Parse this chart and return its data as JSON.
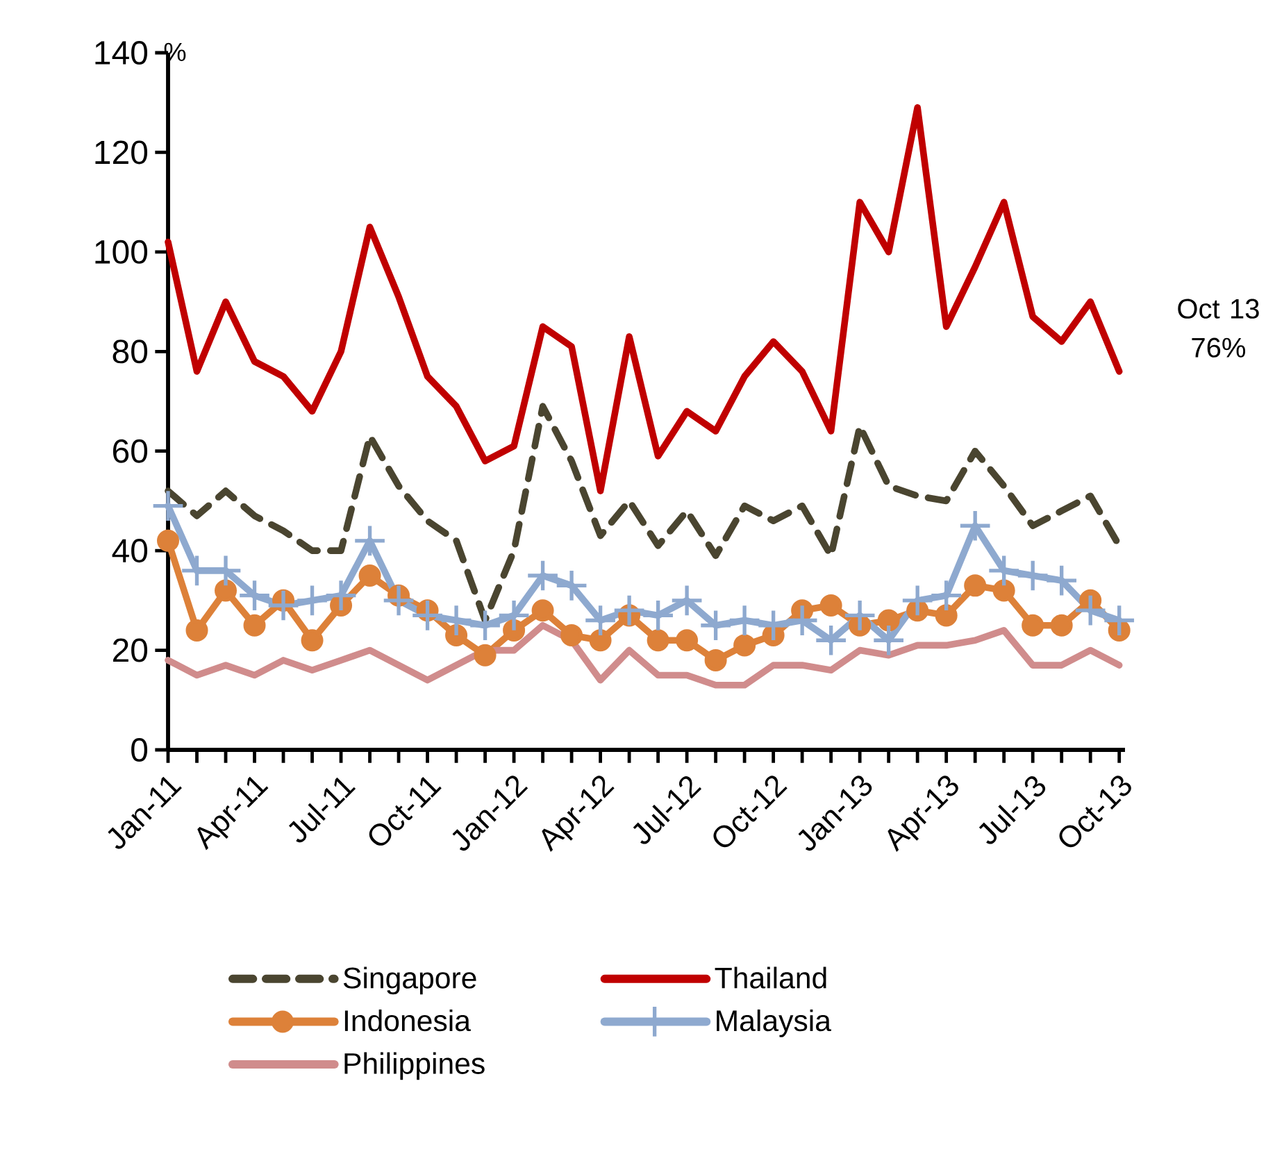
{
  "chart_data": {
    "type": "line",
    "ylabel": "%",
    "categories": [
      "Jan-11",
      null,
      null,
      "Apr-11",
      null,
      null,
      "Jul-11",
      null,
      null,
      "Oct-11",
      null,
      null,
      "Jan-12",
      null,
      null,
      "Apr-12",
      null,
      null,
      "Jul-12",
      null,
      null,
      "Oct-12",
      null,
      null,
      "Jan-13",
      null,
      null,
      "Apr-13",
      null,
      null,
      "Jul-13",
      null,
      null,
      "Oct-13"
    ],
    "ylim": [
      0,
      140
    ],
    "yticks": [
      0,
      20,
      40,
      60,
      80,
      100,
      120,
      140
    ],
    "legend": "bottom",
    "grid": false,
    "series": [
      {
        "name": "Singapore",
        "color": "#4a4530",
        "line_style": "dashed",
        "marker": "none",
        "values": [
          52,
          47,
          52,
          47,
          44,
          40,
          40,
          63,
          53,
          46,
          42,
          26,
          40,
          69,
          58,
          43,
          50,
          41,
          48,
          39,
          49,
          46,
          49,
          39,
          65,
          53,
          51,
          50,
          60,
          53,
          45,
          48,
          51,
          41
        ]
      },
      {
        "name": "Thailand",
        "color": "#c00000",
        "line_style": "solid",
        "marker": "none",
        "values": [
          102,
          76,
          90,
          78,
          75,
          68,
          80,
          105,
          91,
          75,
          69,
          58,
          61,
          85,
          81,
          52,
          83,
          59,
          68,
          64,
          75,
          82,
          76,
          64,
          110,
          100,
          129,
          85,
          97,
          110,
          87,
          82,
          90,
          76
        ]
      },
      {
        "name": "Indonesia",
        "color": "#dd8139",
        "line_style": "solid",
        "marker": "circle",
        "values": [
          42,
          24,
          32,
          25,
          30,
          22,
          29,
          35,
          31,
          28,
          23,
          19,
          24,
          28,
          23,
          22,
          27,
          22,
          22,
          18,
          21,
          23,
          28,
          29,
          25,
          26,
          28,
          27,
          33,
          32,
          25,
          25,
          30,
          24
        ]
      },
      {
        "name": "Malaysia",
        "color": "#8ea9cf",
        "line_style": "solid",
        "marker": "cross",
        "values": [
          49,
          36,
          36,
          31,
          29,
          30,
          31,
          42,
          30,
          27,
          26,
          25,
          27,
          35,
          33,
          26,
          28,
          27,
          30,
          25,
          26,
          25,
          26,
          22,
          27,
          22,
          30,
          31,
          45,
          36,
          35,
          34,
          28,
          26
        ]
      },
      {
        "name": "Philippines",
        "color": "#d08c8c",
        "line_style": "solid",
        "marker": "none",
        "values": [
          18,
          15,
          17,
          15,
          18,
          16,
          18,
          20,
          17,
          14,
          17,
          20,
          20,
          25,
          22,
          14,
          20,
          15,
          15,
          13,
          13,
          17,
          17,
          16,
          20,
          19,
          21,
          21,
          22,
          24,
          17,
          17,
          20,
          17
        ]
      }
    ],
    "annotations": [
      {
        "text": "Oct 13 76%",
        "x": "Oct-13",
        "y": 76
      }
    ]
  }
}
